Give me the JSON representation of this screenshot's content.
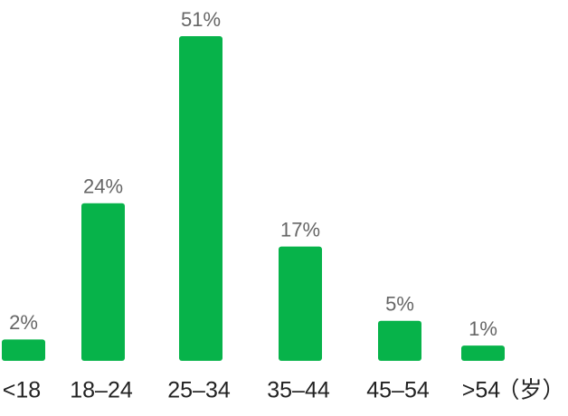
{
  "chart_data": {
    "type": "bar",
    "categories": [
      "<18",
      "18–24",
      "25–34",
      "35–44",
      "45–54",
      ">54"
    ],
    "values": [
      2,
      24,
      51,
      17,
      5,
      1
    ],
    "value_labels": [
      "2%",
      "24%",
      "51%",
      "17%",
      "5%",
      "1%"
    ],
    "x_unit": "（岁）",
    "color": "#07b34a"
  }
}
